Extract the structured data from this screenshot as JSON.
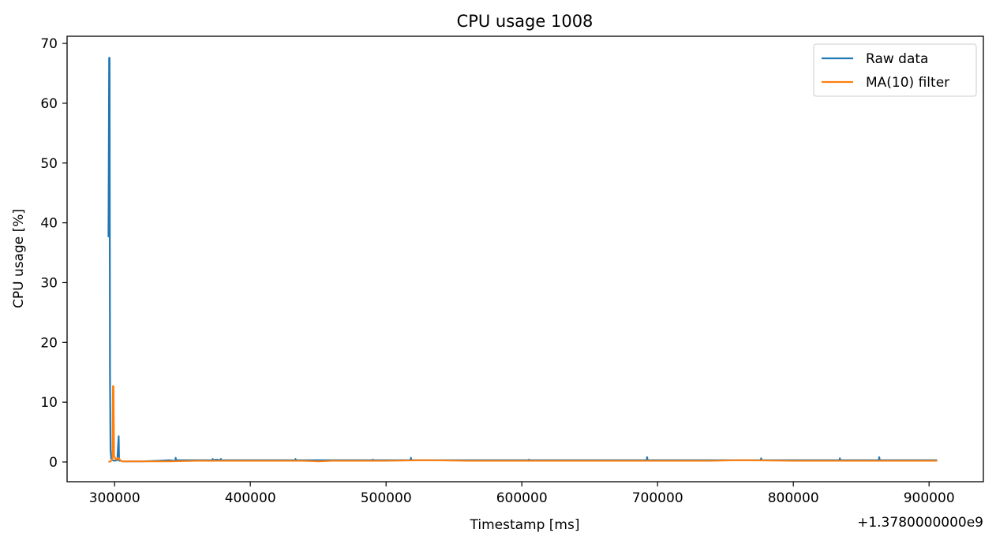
{
  "chart_data": {
    "type": "line",
    "title": "CPU usage 1008",
    "xlabel": "Timestamp [ms]",
    "ylabel": "CPU usage [%]",
    "x_offset_label": "+1.3780000000e9",
    "xlim": [
      265000,
      940000
    ],
    "ylim": [
      -3.3,
      71.2
    ],
    "x_ticks": [
      300000,
      400000,
      500000,
      600000,
      700000,
      800000,
      900000
    ],
    "x_tick_labels": [
      "300000",
      "400000",
      "500000",
      "600000",
      "700000",
      "800000",
      "900000"
    ],
    "y_ticks": [
      0,
      10,
      20,
      30,
      40,
      50,
      60,
      70
    ],
    "y_tick_labels": [
      "0",
      "10",
      "20",
      "30",
      "40",
      "50",
      "60",
      "70"
    ],
    "grid": false,
    "legend_position": "top-right",
    "series": [
      {
        "name": "Raw data",
        "color": "#1f77b4",
        "x": [
          295500,
          296000,
          296300,
          296600,
          297000,
          297500,
          298500,
          300000,
          302000,
          303000,
          303300,
          303600,
          304500,
          306000,
          320000,
          332000,
          340000,
          344800,
          345000,
          345200,
          350000,
          360000,
          372000,
          372300,
          372600,
          375000,
          378000,
          378300,
          378600,
          385000,
          400000,
          420000,
          433000,
          433300,
          433600,
          450000,
          490000,
          490300,
          490600,
          500000,
          518000,
          518300,
          518600,
          530000,
          560000,
          600000,
          605000,
          605300,
          605600,
          640000,
          680000,
          692000,
          692300,
          692600,
          700000,
          740000,
          776000,
          776300,
          776600,
          800000,
          834000,
          834300,
          834600,
          850000,
          863000,
          863300,
          863600,
          880000,
          906000
        ],
        "values": [
          37.6,
          67.6,
          67.6,
          15.0,
          2.0,
          0.6,
          0.3,
          0.2,
          0.3,
          4.3,
          0.3,
          0.2,
          0.2,
          0.1,
          0.1,
          0.2,
          0.3,
          0.2,
          0.7,
          0.3,
          0.3,
          0.3,
          0.3,
          0.5,
          0.3,
          0.4,
          0.3,
          0.5,
          0.3,
          0.3,
          0.3,
          0.3,
          0.3,
          0.5,
          0.3,
          0.3,
          0.3,
          0.4,
          0.3,
          0.3,
          0.3,
          0.7,
          0.3,
          0.3,
          0.3,
          0.3,
          0.3,
          0.4,
          0.3,
          0.3,
          0.3,
          0.3,
          0.8,
          0.3,
          0.3,
          0.3,
          0.3,
          0.6,
          0.3,
          0.3,
          0.3,
          0.6,
          0.3,
          0.3,
          0.3,
          0.8,
          0.3,
          0.3,
          0.3
        ]
      },
      {
        "name": "MA(10) filter",
        "color": "#ff7f0e",
        "x": [
          295500,
          297000,
          298500,
          298800,
          299200,
          299600,
          300500,
          301500,
          302500,
          303500,
          304500,
          306000,
          320000,
          340000,
          360000,
          380000,
          400000,
          420000,
          440000,
          450000,
          460000,
          500000,
          530000,
          560000,
          600000,
          640000,
          680000,
          700000,
          740000,
          760000,
          800000,
          840000,
          880000,
          906000
        ],
        "values": [
          0.0,
          0.1,
          0.5,
          12.7,
          12.6,
          1.0,
          0.6,
          0.4,
          0.7,
          0.5,
          0.2,
          0.1,
          0.1,
          0.1,
          0.2,
          0.2,
          0.2,
          0.2,
          0.2,
          0.1,
          0.2,
          0.2,
          0.3,
          0.2,
          0.2,
          0.2,
          0.2,
          0.2,
          0.2,
          0.3,
          0.2,
          0.2,
          0.2,
          0.2
        ]
      }
    ]
  }
}
